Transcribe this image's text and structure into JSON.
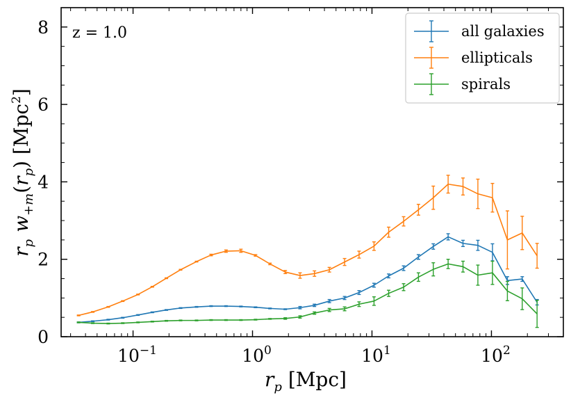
{
  "chart_data": {
    "type": "line",
    "title": "",
    "annotation": "z = 1.0",
    "xlabel": "r_p [Mpc]",
    "xlabel_parts": {
      "var": "r",
      "sub": "p",
      "unit": " [Mpc]"
    },
    "ylabel": "r_p w_{+m}(r_p) [Mpc^2]",
    "ylabel_parts": {
      "var1": "r",
      "sub1": "p",
      "func": "w",
      "sub2": "+m",
      "arg": "r",
      "sub3": "p",
      "unit": "[Mpc",
      "sup": "2"
    },
    "xscale": "log",
    "xlim": [
      0.025,
      400
    ],
    "ylim": [
      0,
      8.5
    ],
    "xticks": [
      0.1,
      1,
      10,
      100
    ],
    "xtick_labels": [
      {
        "base": "10",
        "exp": "−1"
      },
      {
        "base": "10",
        "exp": "0"
      },
      {
        "base": "10",
        "exp": "1"
      },
      {
        "base": "10",
        "exp": "2"
      }
    ],
    "yticks": [
      0,
      2,
      4,
      6,
      8
    ],
    "ytick_labels": [
      "0",
      "2",
      "4",
      "6",
      "8"
    ],
    "legend_position": "top-right",
    "series": [
      {
        "name": "all galaxies",
        "color": "#1f77b4",
        "x": [
          0.035,
          0.046,
          0.062,
          0.082,
          0.11,
          0.145,
          0.19,
          0.25,
          0.34,
          0.45,
          0.6,
          0.8,
          1.06,
          1.4,
          1.88,
          2.5,
          3.3,
          4.4,
          5.9,
          7.8,
          10.4,
          13.8,
          18.4,
          24.5,
          32.6,
          43.4,
          57.8,
          77,
          102,
          136,
          181,
          241
        ],
        "y": [
          0.37,
          0.4,
          0.44,
          0.49,
          0.56,
          0.63,
          0.69,
          0.74,
          0.77,
          0.79,
          0.79,
          0.78,
          0.76,
          0.73,
          0.71,
          0.75,
          0.81,
          0.92,
          1.0,
          1.14,
          1.33,
          1.57,
          1.77,
          2.06,
          2.33,
          2.58,
          2.41,
          2.36,
          2.18,
          1.45,
          1.49,
          0.89
        ],
        "err": [
          0.01,
          0.01,
          0.01,
          0.01,
          0.01,
          0.01,
          0.01,
          0.01,
          0.01,
          0.01,
          0.01,
          0.01,
          0.01,
          0.01,
          0.01,
          0.03,
          0.03,
          0.04,
          0.04,
          0.05,
          0.05,
          0.05,
          0.06,
          0.06,
          0.07,
          0.08,
          0.08,
          0.13,
          0.22,
          0.1,
          0.06,
          0.07
        ]
      },
      {
        "name": "ellipticals",
        "color": "#ff7f0e",
        "x": [
          0.035,
          0.046,
          0.062,
          0.082,
          0.11,
          0.145,
          0.19,
          0.25,
          0.34,
          0.45,
          0.6,
          0.8,
          1.06,
          1.4,
          1.88,
          2.5,
          3.3,
          4.4,
          5.9,
          7.8,
          10.4,
          13.8,
          18.4,
          24.5,
          32.6,
          43.4,
          57.8,
          77,
          102,
          136,
          181,
          241
        ],
        "y": [
          0.55,
          0.64,
          0.77,
          0.92,
          1.09,
          1.29,
          1.51,
          1.73,
          1.94,
          2.11,
          2.21,
          2.22,
          2.1,
          1.88,
          1.67,
          1.58,
          1.63,
          1.73,
          1.93,
          2.12,
          2.34,
          2.7,
          2.98,
          3.28,
          3.59,
          3.94,
          3.88,
          3.69,
          3.59,
          2.5,
          2.68,
          2.09
        ],
        "err": [
          0.01,
          0.01,
          0.01,
          0.01,
          0.01,
          0.01,
          0.01,
          0.01,
          0.01,
          0.02,
          0.03,
          0.04,
          0.02,
          0.02,
          0.04,
          0.07,
          0.07,
          0.06,
          0.09,
          0.09,
          0.11,
          0.13,
          0.12,
          0.14,
          0.3,
          0.23,
          0.22,
          0.38,
          0.37,
          0.75,
          0.43,
          0.32
        ]
      },
      {
        "name": "spirals",
        "color": "#2ca02c",
        "x": [
          0.035,
          0.046,
          0.062,
          0.082,
          0.11,
          0.145,
          0.19,
          0.25,
          0.34,
          0.45,
          0.6,
          0.8,
          1.06,
          1.4,
          1.88,
          2.5,
          3.3,
          4.4,
          5.9,
          7.8,
          10.4,
          13.8,
          18.4,
          24.5,
          32.6,
          43.4,
          57.8,
          77,
          102,
          136,
          181,
          241
        ],
        "y": [
          0.37,
          0.35,
          0.34,
          0.35,
          0.37,
          0.39,
          0.41,
          0.42,
          0.42,
          0.43,
          0.43,
          0.43,
          0.44,
          0.46,
          0.47,
          0.51,
          0.61,
          0.69,
          0.72,
          0.84,
          0.92,
          1.12,
          1.28,
          1.54,
          1.74,
          1.88,
          1.81,
          1.59,
          1.65,
          1.18,
          0.98,
          0.59
        ],
        "err": [
          0.01,
          0.01,
          0.01,
          0.01,
          0.01,
          0.01,
          0.01,
          0.01,
          0.01,
          0.01,
          0.01,
          0.01,
          0.01,
          0.01,
          0.02,
          0.03,
          0.03,
          0.04,
          0.05,
          0.06,
          0.11,
          0.08,
          0.09,
          0.11,
          0.17,
          0.12,
          0.14,
          0.26,
          0.3,
          0.25,
          0.28,
          0.35
        ]
      }
    ]
  }
}
